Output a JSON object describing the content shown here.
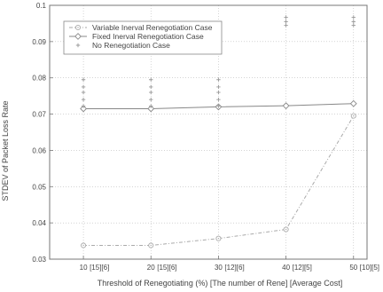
{
  "chart_data": {
    "type": "line",
    "xlabel": "Threshold of Renegotiating (%) [The number of Rene] [Average Cost]",
    "ylabel": "STDEV of Packet Loss Rate",
    "x": [
      10,
      20,
      30,
      40,
      50
    ],
    "x_tick_labels": [
      "10",
      "20",
      "30",
      "40",
      "50"
    ],
    "x_tick_extras": [
      "[15][6]",
      "[15][6]",
      "[12][6]",
      "[12][5]",
      "[10][5]"
    ],
    "xlim": [
      5,
      52
    ],
    "ylim": [
      0.03,
      0.1
    ],
    "y_ticks": [
      0.03,
      0.04,
      0.05,
      0.06,
      0.07,
      0.08,
      0.09,
      0.1
    ],
    "y_tick_labels": [
      "0.03",
      "0.04",
      "0.05",
      "0.06",
      "0.07",
      "0.08",
      "0.09",
      "0.1"
    ],
    "grid": true,
    "legend_position": "top-left",
    "series": [
      {
        "name": "Variable Inerval Renegotiation Case",
        "marker": "circle-dot",
        "line": "dash-dot",
        "color": "#aaaaaa",
        "values": [
          0.0338,
          0.0338,
          0.0357,
          0.0382,
          0.0695
        ]
      },
      {
        "name": "Fixed Inerval Renegotiation Case",
        "marker": "diamond",
        "line": "solid",
        "color": "#888888",
        "values": [
          0.0715,
          0.0715,
          0.072,
          0.0723,
          0.0729
        ]
      },
      {
        "name": "No Renegotiation Case",
        "marker": "plus",
        "line": "none",
        "color": "#999999",
        "values": [
          [
            0.0795,
            0.0775,
            0.076,
            0.074,
            0.0722
          ],
          [
            0.0795,
            0.0775,
            0.076,
            0.074,
            0.0722
          ],
          [
            0.0795,
            0.0775,
            0.076,
            0.074,
            0.0722
          ],
          [
            0.0967,
            0.0955,
            0.0945
          ],
          [
            0.0967,
            0.0955,
            0.0945
          ]
        ]
      }
    ]
  }
}
